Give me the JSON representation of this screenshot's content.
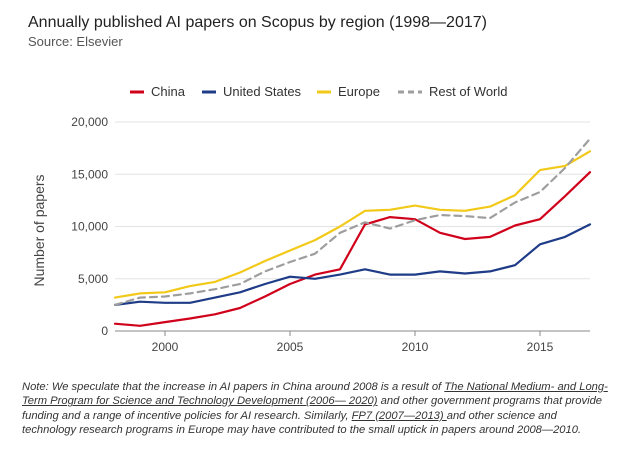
{
  "header": {
    "title": "Annually published AI papers on Scopus by region (1998—2017)",
    "source": "Source: Elsevier"
  },
  "chart_data": {
    "type": "line",
    "title": "Annually published AI papers on Scopus by region (1998—2017)",
    "xlabel": "",
    "ylabel": "Number of papers",
    "xlim": [
      1998,
      2017
    ],
    "ylim": [
      0,
      20000
    ],
    "xticks": [
      2000,
      2005,
      2010,
      2015
    ],
    "yticks": [
      0,
      5000,
      10000,
      15000,
      20000
    ],
    "ytick_labels": [
      "0",
      "5,000",
      "10,000",
      "15,000",
      "20,000"
    ],
    "grid": true,
    "legend_position": "top",
    "x": [
      1998,
      1999,
      2000,
      2001,
      2002,
      2003,
      2004,
      2005,
      2006,
      2007,
      2008,
      2009,
      2010,
      2011,
      2012,
      2013,
      2014,
      2015,
      2016,
      2017
    ],
    "series": [
      {
        "name": "China",
        "color": "#d0021b",
        "dashed": false,
        "values": [
          700,
          500,
          850,
          1200,
          1600,
          2200,
          3300,
          4500,
          5400,
          5900,
          10200,
          10900,
          10700,
          9400,
          8800,
          9000,
          10100,
          10700,
          12900,
          15200
        ]
      },
      {
        "name": "United States",
        "color": "#1f3c88",
        "dashed": false,
        "values": [
          2500,
          2800,
          2700,
          2700,
          3200,
          3700,
          4500,
          5200,
          5000,
          5400,
          5900,
          5400,
          5400,
          5700,
          5500,
          5700,
          6300,
          8300,
          9000,
          10200
        ]
      },
      {
        "name": "Europe",
        "color": "#f2c919",
        "dashed": false,
        "values": [
          3200,
          3600,
          3700,
          4300,
          4700,
          5600,
          6700,
          7700,
          8700,
          10000,
          11500,
          11600,
          12000,
          11600,
          11500,
          11900,
          13000,
          15400,
          15800,
          17200
        ]
      },
      {
        "name": "Rest of World",
        "color": "#9e9e9e",
        "dashed": true,
        "values": [
          2500,
          3200,
          3300,
          3600,
          4000,
          4500,
          5700,
          6600,
          7400,
          9400,
          10400,
          9800,
          10600,
          11100,
          11000,
          10800,
          12300,
          13300,
          15600,
          18400
        ]
      }
    ]
  },
  "note": {
    "text_1": "Note: We speculate that the increase in AI papers in China around 2008 is a result of ",
    "link_1": "The National Medium- and Long-Term Program for Science and Technology Development (2006— 2020)",
    "text_2": " and other government programs that provide funding and a range of incentive policies for AI research. Similarly, ",
    "link_2": "FP7 (2007—2013) ",
    "text_3": "and other science and technology research programs in Europe may have contributed to the small uptick in papers around 2008—2010."
  }
}
